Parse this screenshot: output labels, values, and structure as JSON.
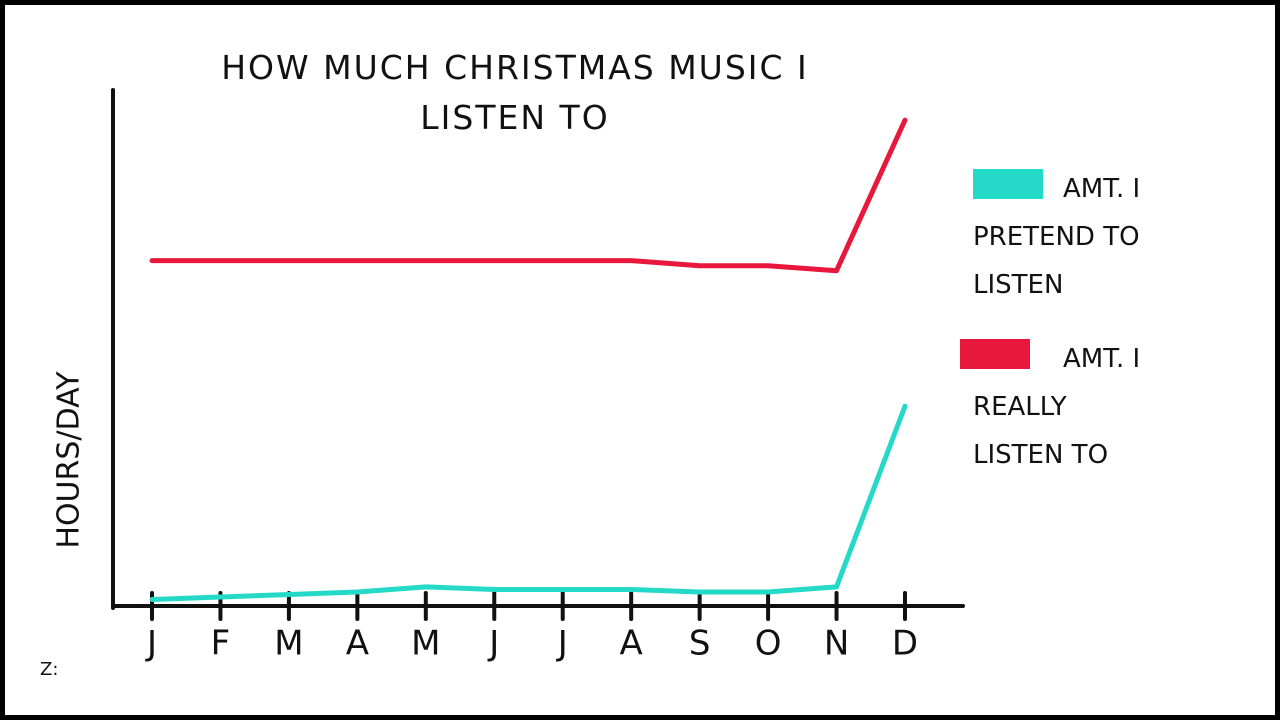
{
  "chart_data": {
    "type": "line",
    "title": "HOW MUCH CHRISTMAS MUSIC I LISTEN TO",
    "y_label": "HOURS/DAY",
    "categories": [
      "J",
      "F",
      "M",
      "A",
      "M",
      "J",
      "J",
      "A",
      "S",
      "O",
      "N",
      "D"
    ],
    "series": [
      {
        "name": "AMT. I PRETEND TO LISTEN",
        "color": "#25d9c8",
        "values": [
          0.05,
          0.1,
          0.15,
          0.2,
          0.3,
          0.25,
          0.25,
          0.25,
          0.2,
          0.2,
          0.3,
          3.9
        ]
      },
      {
        "name": "AMT. I REALLY LISTEN TO",
        "color": "#e8183c",
        "values": [
          6.8,
          6.8,
          6.8,
          6.8,
          6.8,
          6.8,
          6.8,
          6.8,
          6.7,
          6.7,
          6.6,
          9.6
        ]
      }
    ],
    "ylim": [
      0,
      10
    ],
    "signature": "Z:"
  }
}
